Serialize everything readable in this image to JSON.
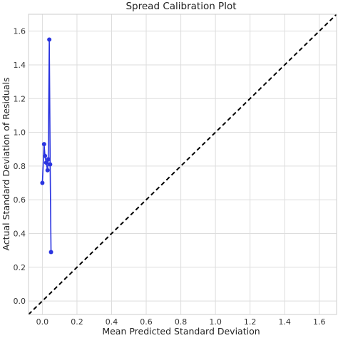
{
  "chart_data": {
    "type": "line",
    "title": "Spread Calibration Plot",
    "xlabel": "Mean Predicted Standard Deviation",
    "ylabel": "Actual Standard Deviation of Residuals",
    "xlim": [
      -0.08,
      1.7
    ],
    "ylim": [
      -0.08,
      1.7
    ],
    "grid": true,
    "x_ticks": [
      0.0,
      0.2,
      0.4,
      0.6,
      0.8,
      1.0,
      1.2,
      1.4,
      1.6
    ],
    "y_ticks": [
      0.0,
      0.2,
      0.4,
      0.6,
      0.8,
      1.0,
      1.2,
      1.4,
      1.6
    ],
    "series": [
      {
        "color": "#2b35e0",
        "marker": "circle",
        "x": [
          0.0,
          0.01,
          0.015,
          0.022,
          0.03,
          0.034,
          0.04,
          0.045,
          0.05
        ],
        "y": [
          0.7,
          0.93,
          0.86,
          0.82,
          0.775,
          0.84,
          1.55,
          0.81,
          0.29
        ]
      },
      {
        "style": "dashed",
        "color": "#000000",
        "x": [
          -0.08,
          1.7
        ],
        "y": [
          -0.08,
          1.7
        ]
      }
    ]
  }
}
